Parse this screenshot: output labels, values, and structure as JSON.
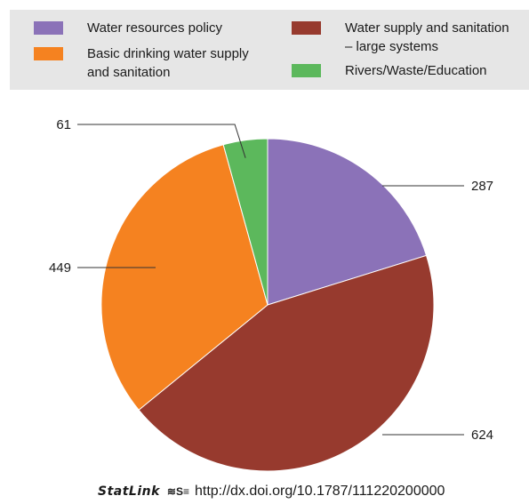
{
  "legend": {
    "items": [
      {
        "label": "Water resources policy",
        "color": "#8B72B8"
      },
      {
        "label": "Basic drinking water supply\nand sanitation",
        "color": "#F58220"
      },
      {
        "label": "Water supply and sanitation\n– large systems",
        "color": "#973A2E"
      },
      {
        "label": "Rivers/Waste/Education",
        "color": "#5CB85C"
      }
    ]
  },
  "chart_data": {
    "type": "pie",
    "title": "",
    "categories": [
      "Water resources policy",
      "Water supply and sanitation – large systems",
      "Basic drinking water supply and sanitation",
      "Rivers/Waste/Education"
    ],
    "values": [
      287,
      624,
      449,
      61
    ],
    "colors": [
      "#8B72B8",
      "#973A2E",
      "#F58220",
      "#5CB85C"
    ],
    "labels": [
      "287",
      "624",
      "449",
      "61"
    ],
    "start": "12 o'clock",
    "direction": "clockwise"
  },
  "footer": {
    "logo": "StatLink",
    "icon": "≋S≡",
    "url": "http://dx.doi.org/10.1787/111220200000"
  }
}
